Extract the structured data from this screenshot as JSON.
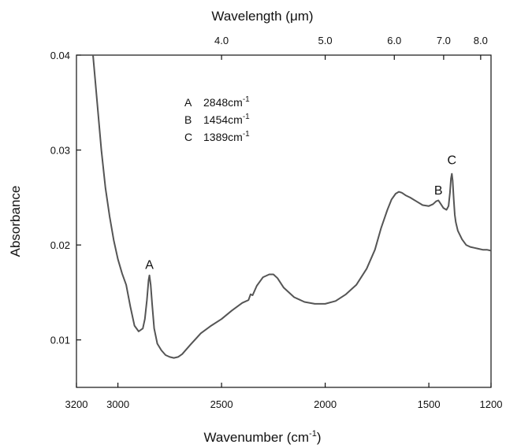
{
  "chart_data": {
    "type": "line",
    "title": "",
    "xlabel": "Wavenumber (cm",
    "xlabel_sup": "-1",
    "xlabel_tail": ")",
    "ylabel": "Absorbance",
    "top_axis_label": "Wavelength (μm)",
    "xlim": [
      3200,
      1200
    ],
    "ylim": [
      0.005,
      0.04
    ],
    "x_ticks": [
      3200,
      3000,
      2500,
      2000,
      1500,
      1200
    ],
    "x_tick_labels": [
      "3200",
      "3000",
      "2500",
      "2000",
      "1500",
      "1200"
    ],
    "y_ticks": [
      0.01,
      0.02,
      0.03,
      0.04
    ],
    "y_tick_labels": [
      "0.01",
      "0.02",
      "0.03",
      "0.04"
    ],
    "top_ticks_um": [
      4.0,
      5.0,
      6.0,
      7.0,
      8.0
    ],
    "top_tick_labels": [
      "4.0",
      "5.0",
      "6.0",
      "7.0",
      "8.0"
    ],
    "grid": false,
    "line_color": "#555555",
    "series": [
      {
        "x": [
          3120,
          3100,
          3080,
          3060,
          3040,
          3020,
          3000,
          2980,
          2960,
          2940,
          2920,
          2900,
          2880,
          2870,
          2860,
          2852,
          2848,
          2842,
          2835,
          2825,
          2810,
          2790,
          2770,
          2750,
          2730,
          2710,
          2690,
          2650,
          2600,
          2550,
          2500,
          2450,
          2400,
          2370,
          2360,
          2350,
          2330,
          2300,
          2270,
          2250,
          2230,
          2200,
          2150,
          2100,
          2050,
          2000,
          1950,
          1900,
          1850,
          1800,
          1760,
          1730,
          1700,
          1680,
          1660,
          1645,
          1630,
          1610,
          1590,
          1560,
          1530,
          1500,
          1480,
          1465,
          1454,
          1445,
          1430,
          1415,
          1405,
          1398,
          1393,
          1389,
          1385,
          1380,
          1375,
          1370,
          1360,
          1340,
          1320,
          1300,
          1280,
          1260,
          1240,
          1220,
          1200
        ],
        "y": [
          0.04,
          0.035,
          0.03,
          0.026,
          0.023,
          0.0205,
          0.0185,
          0.017,
          0.0158,
          0.0135,
          0.0115,
          0.0109,
          0.0112,
          0.0122,
          0.0142,
          0.0163,
          0.0168,
          0.0158,
          0.0138,
          0.0112,
          0.0096,
          0.0089,
          0.0084,
          0.0082,
          0.0081,
          0.0082,
          0.0085,
          0.0095,
          0.0107,
          0.0115,
          0.0122,
          0.0131,
          0.0139,
          0.0142,
          0.0148,
          0.0147,
          0.0157,
          0.0166,
          0.0169,
          0.0169,
          0.0165,
          0.0155,
          0.0145,
          0.014,
          0.0138,
          0.0138,
          0.0141,
          0.0148,
          0.0158,
          0.0175,
          0.0195,
          0.0218,
          0.0237,
          0.0248,
          0.0254,
          0.0256,
          0.0255,
          0.0252,
          0.025,
          0.0246,
          0.0242,
          0.0241,
          0.0243,
          0.0246,
          0.0247,
          0.0244,
          0.0239,
          0.0237,
          0.0241,
          0.0255,
          0.027,
          0.0275,
          0.0268,
          0.0248,
          0.0232,
          0.0224,
          0.0215,
          0.0206,
          0.02,
          0.0198,
          0.0197,
          0.0196,
          0.0195,
          0.0195,
          0.0194
        ]
      }
    ],
    "peak_labels": [
      {
        "text": "A",
        "x": 2848,
        "y": 0.0175
      },
      {
        "text": "B",
        "x": 1454,
        "y": 0.0253
      },
      {
        "text": "C",
        "x": 1389,
        "y": 0.0285
      }
    ],
    "annotation": [
      {
        "letter": "A",
        "value": "2848cm",
        "sup": "-1"
      },
      {
        "letter": "B",
        "value": "1454cm",
        "sup": "-1"
      },
      {
        "letter": "C",
        "value": "1389cm",
        "sup": "-1"
      }
    ]
  }
}
